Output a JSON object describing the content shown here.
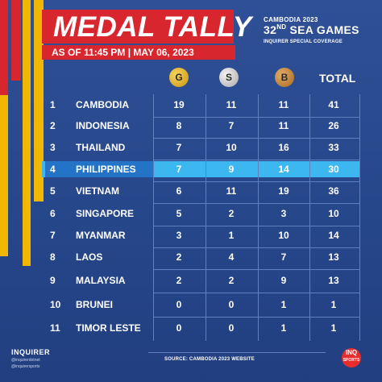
{
  "header": {
    "title": "MEDAL TALLY",
    "date": "AS OF 11:45 PM | MAY 06, 2023",
    "games_top": "CAMBODIA 2023",
    "games_main_prefix": "32",
    "games_main_sup": "ND",
    "games_main_suffix": " SEA GAMES",
    "games_sub": "INQUIRER SPECIAL COVERAGE"
  },
  "columns": {
    "gold": "G",
    "silver": "S",
    "bronze": "B",
    "total": "TOTAL"
  },
  "colors": {
    "background": "#2c4a8a",
    "accent_red": "#d8262e",
    "accent_yellow": "#f2b705",
    "highlight": "#3cb7f0"
  },
  "rows": [
    {
      "rank": "1",
      "country": "CAMBODIA",
      "gold": "19",
      "silver": "11",
      "bronze": "11",
      "total": "41"
    },
    {
      "rank": "2",
      "country": "INDONESIA",
      "gold": "8",
      "silver": "7",
      "bronze": "11",
      "total": "26"
    },
    {
      "rank": "3",
      "country": "THAILAND",
      "gold": "7",
      "silver": "10",
      "bronze": "16",
      "total": "33"
    },
    {
      "rank": "4",
      "country": "PHILIPPINES",
      "gold": "7",
      "silver": "9",
      "bronze": "14",
      "total": "30"
    },
    {
      "rank": "5",
      "country": "VIETNAM",
      "gold": "6",
      "silver": "11",
      "bronze": "19",
      "total": "36"
    },
    {
      "rank": "6",
      "country": "SINGAPORE",
      "gold": "5",
      "silver": "2",
      "bronze": "3",
      "total": "10"
    },
    {
      "rank": "7",
      "country": "MYANMAR",
      "gold": "3",
      "silver": "1",
      "bronze": "10",
      "total": "14"
    },
    {
      "rank": "8",
      "country": "LAOS",
      "gold": "2",
      "silver": "4",
      "bronze": "7",
      "total": "13"
    },
    {
      "rank": "9",
      "country": "MALAYSIA",
      "gold": "2",
      "silver": "2",
      "bronze": "9",
      "total": "13"
    },
    {
      "rank": "10",
      "country": "BRUNEI",
      "gold": "0",
      "silver": "0",
      "bronze": "1",
      "total": "1"
    },
    {
      "rank": "11",
      "country": "TIMOR LESTE",
      "gold": "0",
      "silver": "0",
      "bronze": "1",
      "total": "1"
    }
  ],
  "footer": {
    "source": "SOURCE: CAMBODIA 2023 WEBSITE",
    "brand": "INQUIRER",
    "social_1": "@inquirerdotnet",
    "social_2": "@inquirersports",
    "logo_top": "INQ",
    "logo_bottom": "SPORTS"
  }
}
